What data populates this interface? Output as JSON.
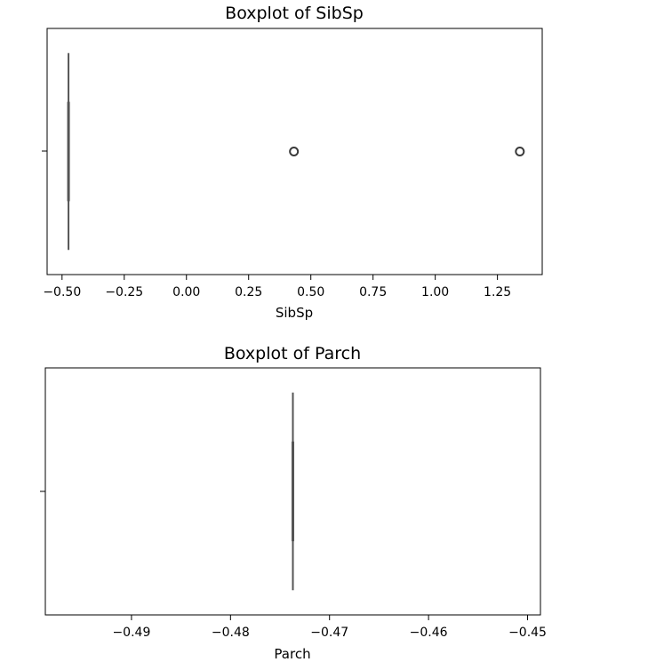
{
  "chart_data": [
    {
      "type": "boxplot",
      "title": "Boxplot of SibSp",
      "xlabel": "SibSp",
      "ylabel": "",
      "xlim": [
        -0.56,
        1.43
      ],
      "xticks": [
        -0.5,
        -0.25,
        0.0,
        0.25,
        0.5,
        0.75,
        1.0,
        1.25
      ],
      "xtick_labels": [
        "−0.50",
        "−0.25",
        "0.00",
        "0.25",
        "0.50",
        "0.75",
        "1.00",
        "1.25"
      ],
      "box": {
        "whisker_low": -0.474,
        "q1": -0.474,
        "median": -0.474,
        "q3": -0.474,
        "whisker_high": -0.474
      },
      "outliers": [
        0.432,
        1.34
      ],
      "grid": false,
      "line_color": "#555555"
    },
    {
      "type": "boxplot",
      "title": "Boxplot of Parch",
      "xlabel": "Parch",
      "ylabel": "",
      "xlim": [
        -0.4987,
        -0.4487
      ],
      "xticks": [
        -0.49,
        -0.48,
        -0.47,
        -0.46,
        -0.45
      ],
      "xtick_labels": [
        "−0.49",
        "−0.48",
        "−0.47",
        "−0.46",
        "−0.45"
      ],
      "box": {
        "whisker_low": -0.4737,
        "q1": -0.4737,
        "median": -0.4737,
        "q3": -0.4737,
        "whisker_high": -0.4737
      },
      "outliers": [],
      "grid": false,
      "line_color": "#555555"
    }
  ]
}
